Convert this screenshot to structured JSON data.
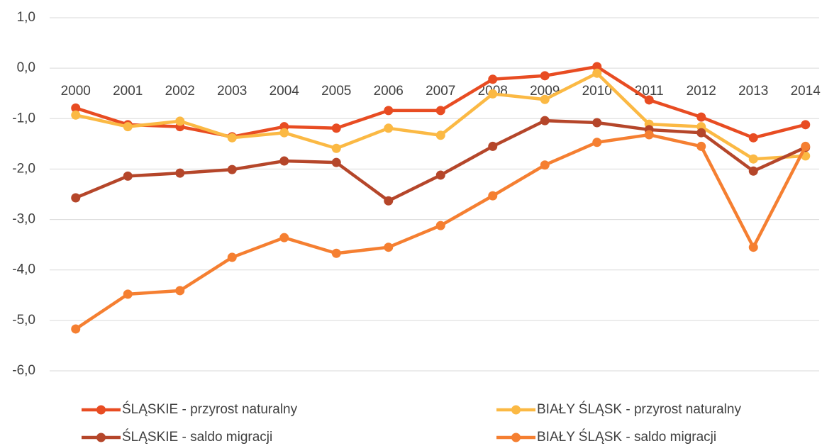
{
  "chart_data": {
    "type": "line",
    "categories": [
      "2000",
      "2001",
      "2002",
      "2003",
      "2004",
      "2005",
      "2006",
      "2007",
      "2008",
      "2009",
      "2010",
      "2011",
      "2012",
      "2013",
      "2014"
    ],
    "series": [
      {
        "name": "ŚLĄSKIE - przyrost naturalny",
        "color": "#e84c22",
        "values": [
          -0.79,
          -1.12,
          -1.16,
          -1.36,
          -1.16,
          -1.19,
          -0.84,
          -0.84,
          -0.22,
          -0.15,
          0.03,
          -0.63,
          -0.97,
          -1.38,
          -1.12
        ]
      },
      {
        "name": "BIAŁY ŚLĄSK - przyrost naturalny",
        "color": "#fbb944",
        "values": [
          -0.93,
          -1.16,
          -1.05,
          -1.38,
          -1.28,
          -1.59,
          -1.19,
          -1.33,
          -0.51,
          -0.62,
          -0.1,
          -1.11,
          -1.16,
          -1.8,
          -1.74
        ]
      },
      {
        "name": "ŚLĄSKIE - saldo migracji",
        "color": "#b5462a",
        "values": [
          -2.57,
          -2.14,
          -2.08,
          -2.01,
          -1.84,
          -1.87,
          -2.63,
          -2.12,
          -1.55,
          -1.04,
          -1.08,
          -1.22,
          -1.28,
          -2.04,
          -1.57
        ]
      },
      {
        "name": "BIAŁY ŚLĄSK - saldo migracji",
        "color": "#f57f31",
        "values": [
          -5.17,
          -4.48,
          -4.41,
          -3.75,
          -3.36,
          -3.67,
          -3.55,
          -3.12,
          -2.53,
          -1.92,
          -1.47,
          -1.32,
          -1.55,
          -3.55,
          -1.55
        ]
      }
    ],
    "ylim": [
      -6,
      1
    ],
    "yticks": [
      {
        "value": -6,
        "label": "-6,0"
      },
      {
        "value": -5,
        "label": "-5,0"
      },
      {
        "value": -4,
        "label": "-4,0"
      },
      {
        "value": -3,
        "label": "-3,0"
      },
      {
        "value": -2,
        "label": "-2,0"
      },
      {
        "value": -1,
        "label": "-1,0"
      },
      {
        "value": 0,
        "label": "0,0"
      },
      {
        "value": 1,
        "label": "1,0"
      }
    ],
    "grid": true,
    "legend": "bottom"
  }
}
